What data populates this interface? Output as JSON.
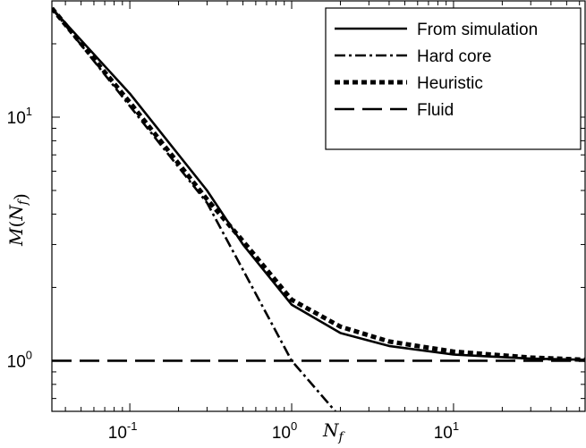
{
  "chart_data": {
    "type": "line",
    "xscale": "log",
    "yscale": "log",
    "xlim": [
      0.033,
      65
    ],
    "ylim": [
      0.62,
      30
    ],
    "xlabel": "N_f",
    "ylabel": "M(N_f)",
    "x_ticks": [
      {
        "value": 0.1,
        "base": "10",
        "exp": "-1"
      },
      {
        "value": 1,
        "base": "10",
        "exp": "0"
      },
      {
        "value": 10,
        "base": "10",
        "exp": "1"
      }
    ],
    "y_ticks": [
      {
        "value": 1,
        "base": "10",
        "exp": "0"
      },
      {
        "value": 10,
        "base": "10",
        "exp": "1"
      }
    ],
    "grid": false,
    "legend_position": "top-right",
    "series": [
      {
        "name": "From simulation",
        "style": "solid",
        "x": [
          0.033,
          0.1,
          0.3,
          0.5,
          1,
          2,
          4,
          10,
          30,
          65
        ],
        "y": [
          28,
          12.5,
          5.0,
          3.0,
          1.7,
          1.3,
          1.15,
          1.06,
          1.02,
          1.01
        ]
      },
      {
        "name": "Hard core",
        "style": "dashdot",
        "x": [
          0.033,
          0.1,
          0.3,
          1,
          1.86
        ],
        "y": [
          28,
          11.1,
          4.45,
          1.0,
          0.62
        ]
      },
      {
        "name": "Heuristic",
        "style": "dotted-thick",
        "x": [
          0.033,
          0.1,
          0.3,
          0.5,
          1,
          2,
          4,
          10,
          30,
          65
        ],
        "y": [
          28,
          11.5,
          4.6,
          3.1,
          1.78,
          1.38,
          1.2,
          1.09,
          1.03,
          1.01
        ]
      },
      {
        "name": "Fluid",
        "style": "dashed",
        "x": [
          0.033,
          65
        ],
        "y": [
          1,
          1
        ]
      }
    ]
  }
}
